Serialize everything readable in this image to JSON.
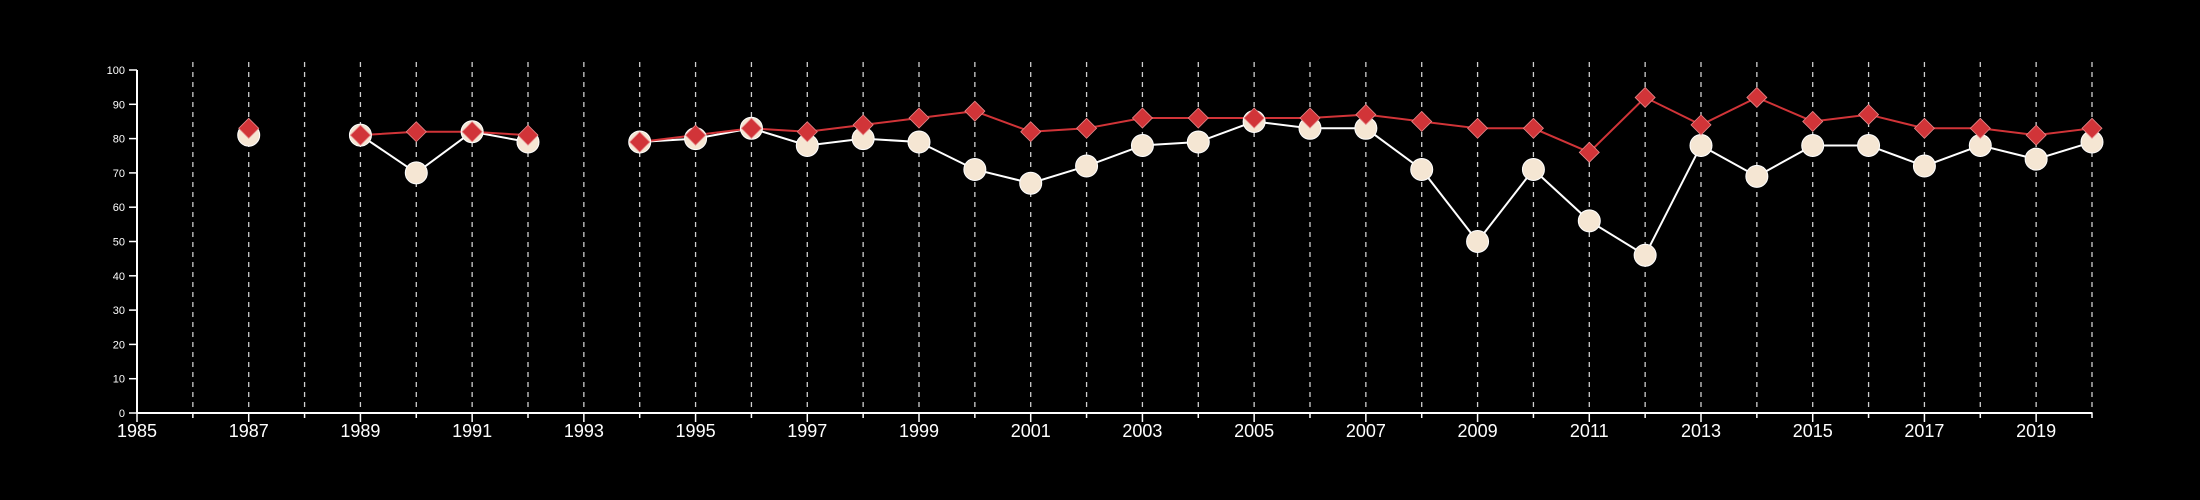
{
  "chart_data": {
    "type": "line",
    "title": "",
    "xlabel": "",
    "ylabel": "",
    "xlim": [
      1985,
      2020
    ],
    "ylim": [
      0,
      100
    ],
    "x_ticks": [
      1985,
      1987,
      1989,
      1991,
      1993,
      1995,
      1997,
      1999,
      2001,
      2003,
      2005,
      2007,
      2009,
      2011,
      2013,
      2015,
      2017,
      2019
    ],
    "y_ticks": [
      0,
      10,
      20,
      30,
      40,
      50,
      60,
      70,
      80,
      90,
      100
    ],
    "vertical_gridlines": "every year, dashed",
    "series": [
      {
        "color": "#ffffff",
        "marker": "circle",
        "marker_fill": "#f5e6d3",
        "points": [
          {
            "x": 1987,
            "y": 81
          },
          {
            "x": 1989,
            "y": 81
          },
          {
            "x": 1990,
            "y": 70
          },
          {
            "x": 1991,
            "y": 82
          },
          {
            "x": 1992,
            "y": 79
          },
          {
            "x": 1994,
            "y": 79
          },
          {
            "x": 1995,
            "y": 80
          },
          {
            "x": 1996,
            "y": 83
          },
          {
            "x": 1997,
            "y": 78
          },
          {
            "x": 1998,
            "y": 80
          },
          {
            "x": 1999,
            "y": 79
          },
          {
            "x": 2000,
            "y": 71
          },
          {
            "x": 2001,
            "y": 67
          },
          {
            "x": 2002,
            "y": 72
          },
          {
            "x": 2003,
            "y": 78
          },
          {
            "x": 2004,
            "y": 79
          },
          {
            "x": 2005,
            "y": 85
          },
          {
            "x": 2006,
            "y": 83
          },
          {
            "x": 2007,
            "y": 83
          },
          {
            "x": 2008,
            "y": 71
          },
          {
            "x": 2009,
            "y": 50
          },
          {
            "x": 2010,
            "y": 71
          },
          {
            "x": 2011,
            "y": 56
          },
          {
            "x": 2012,
            "y": 46
          },
          {
            "x": 2013,
            "y": 78
          },
          {
            "x": 2014,
            "y": 69
          },
          {
            "x": 2015,
            "y": 78
          },
          {
            "x": 2016,
            "y": 78
          },
          {
            "x": 2017,
            "y": 72
          },
          {
            "x": 2018,
            "y": 78
          },
          {
            "x": 2019,
            "y": 74
          },
          {
            "x": 2020,
            "y": 79
          }
        ]
      },
      {
        "color": "#d13438",
        "marker": "diamond",
        "marker_fill": "#d13438",
        "points": [
          {
            "x": 1987,
            "y": 83
          },
          {
            "x": 1989,
            "y": 81
          },
          {
            "x": 1990,
            "y": 82
          },
          {
            "x": 1991,
            "y": 82
          },
          {
            "x": 1992,
            "y": 81
          },
          {
            "x": 1994,
            "y": 79
          },
          {
            "x": 1995,
            "y": 81
          },
          {
            "x": 1996,
            "y": 83
          },
          {
            "x": 1997,
            "y": 82
          },
          {
            "x": 1998,
            "y": 84
          },
          {
            "x": 1999,
            "y": 86
          },
          {
            "x": 2000,
            "y": 88
          },
          {
            "x": 2001,
            "y": 82
          },
          {
            "x": 2002,
            "y": 83
          },
          {
            "x": 2003,
            "y": 86
          },
          {
            "x": 2004,
            "y": 86
          },
          {
            "x": 2005,
            "y": 86
          },
          {
            "x": 2006,
            "y": 86
          },
          {
            "x": 2007,
            "y": 87
          },
          {
            "x": 2008,
            "y": 85
          },
          {
            "x": 2009,
            "y": 83
          },
          {
            "x": 2010,
            "y": 83
          },
          {
            "x": 2011,
            "y": 76
          },
          {
            "x": 2012,
            "y": 92
          },
          {
            "x": 2013,
            "y": 84
          },
          {
            "x": 2014,
            "y": 92
          },
          {
            "x": 2015,
            "y": 85
          },
          {
            "x": 2016,
            "y": 87
          },
          {
            "x": 2017,
            "y": 83
          },
          {
            "x": 2018,
            "y": 83
          },
          {
            "x": 2019,
            "y": 81
          },
          {
            "x": 2020,
            "y": 83
          }
        ]
      }
    ]
  }
}
